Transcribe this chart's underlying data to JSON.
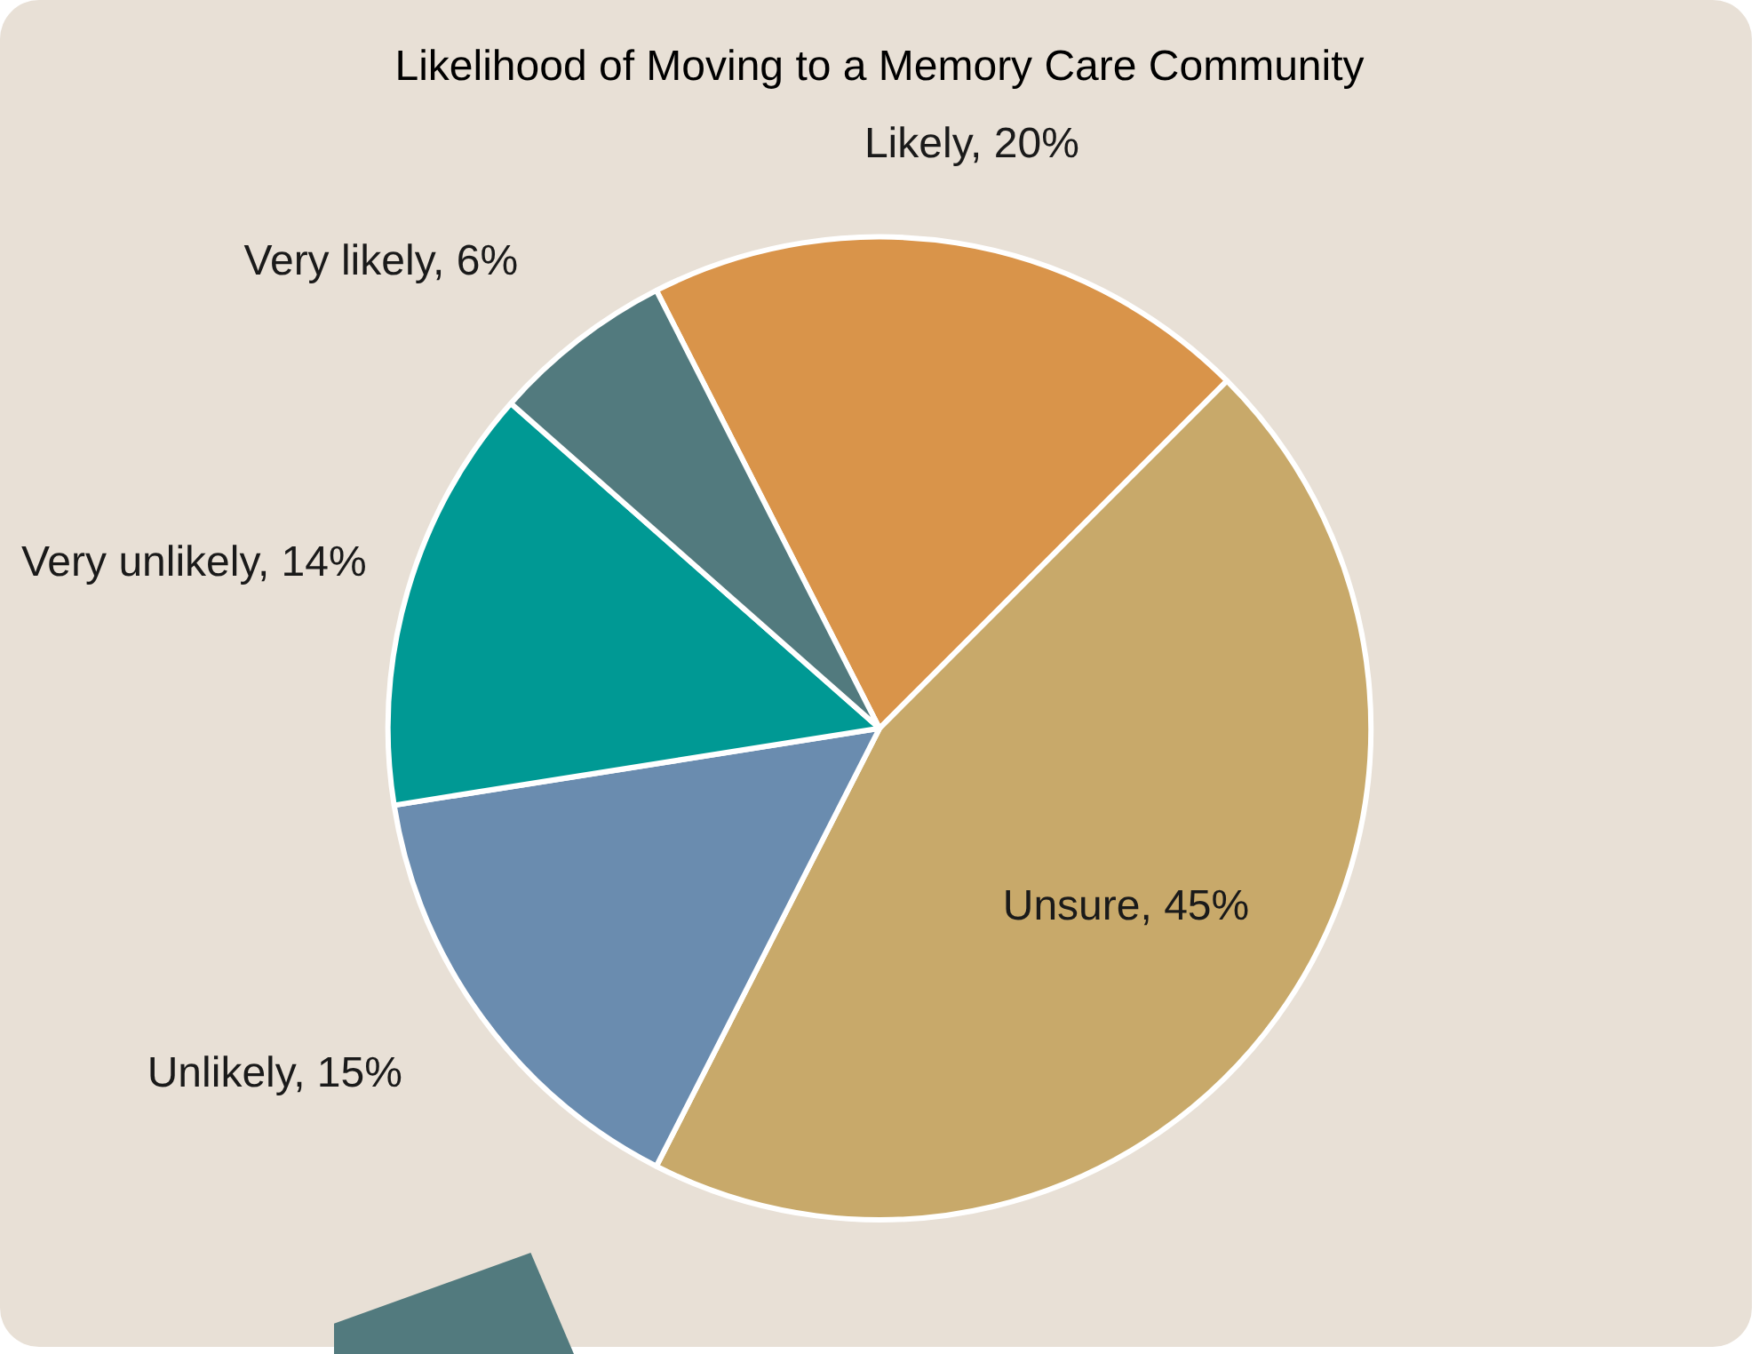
{
  "chart_data": {
    "type": "pie",
    "title": "Likelihood of Moving to a Memory Care Community",
    "categories": [
      "Likely",
      "Unsure",
      "Unlikely",
      "Very unlikely",
      "Very likely"
    ],
    "values": [
      20,
      45,
      15,
      14,
      6
    ],
    "value_labels": [
      "20%",
      "45%",
      "15%",
      "14%",
      "6%"
    ],
    "colors": [
      "#d9944a",
      "#c8a96a",
      "#6a8caf",
      "#009994",
      "#527a7e"
    ],
    "legend": false
  }
}
